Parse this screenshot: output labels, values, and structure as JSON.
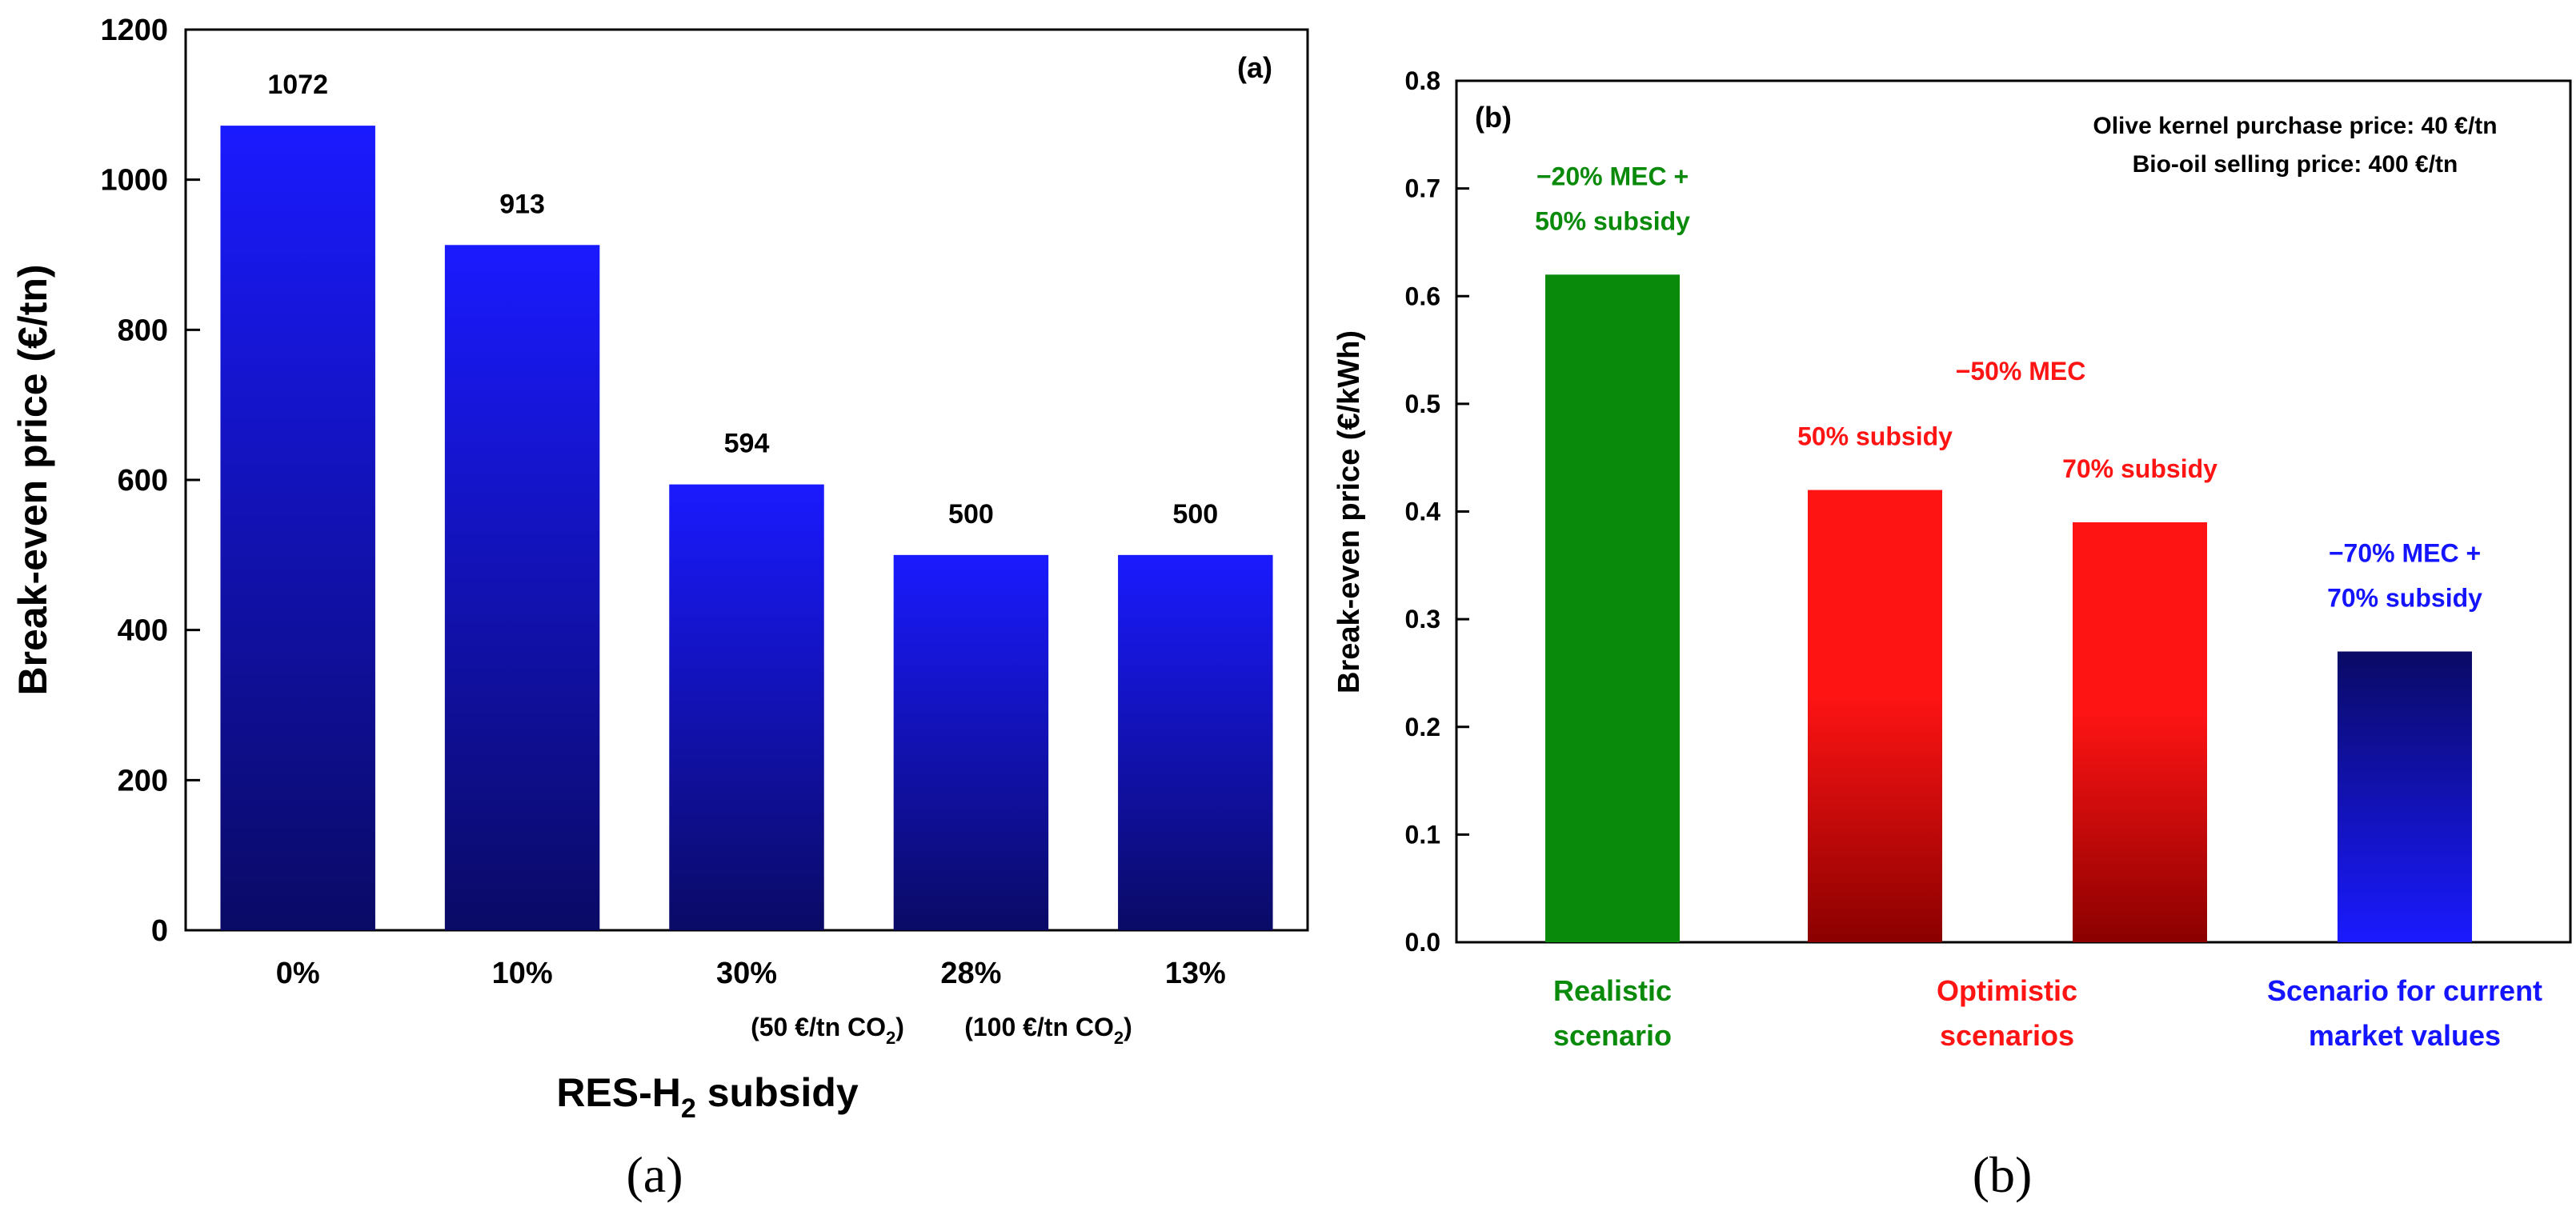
{
  "chart_data": [
    {
      "type": "bar",
      "panel_tag": "(a)",
      "caption": "(a)",
      "ylabel": "Break-even price (€/tn)",
      "xlabel": {
        "prefix": "RES-H",
        "subscript": "2",
        "suffix": " subsidy"
      },
      "ylim": [
        0,
        1200
      ],
      "yticks": [
        0,
        200,
        400,
        600,
        800,
        1000,
        1200
      ],
      "categories": [
        "0%",
        "10%",
        "30%",
        "28%",
        "13%"
      ],
      "values": [
        1072,
        913,
        594,
        500,
        500
      ],
      "value_labels": [
        "1072",
        "913",
        "594",
        "500",
        "500"
      ],
      "subcategory_notes": [
        {
          "category": "28%",
          "prefix": "(50 €/tn CO",
          "subscript": "2",
          "suffix": ")"
        },
        {
          "category": "13%",
          "prefix": "(100 €/tn CO",
          "subscript": "2",
          "suffix": ")"
        }
      ],
      "bar_gradient": {
        "top": "#1a1aff",
        "bottom": "#0a0a66"
      }
    },
    {
      "type": "bar",
      "panel_tag": "(b)",
      "caption": "(b)",
      "ylabel": "Break-even price (€/kWh)",
      "ylim": [
        0,
        0.8
      ],
      "yticks": [
        "0.0",
        "0.1",
        "0.2",
        "0.3",
        "0.4",
        "0.5",
        "0.6",
        "0.7",
        "0.8"
      ],
      "info_lines": [
        "Olive kernel purchase price: 40 €/tn",
        "Bio-oil selling price: 400 €/tn"
      ],
      "bars": [
        {
          "value": 0.62,
          "label_lines": [
            "−20% MEC +",
            "50% subsidy"
          ],
          "color": "#0a8a0a",
          "gradient": [
            "#0a8a0a",
            "#0a8a0a"
          ]
        },
        {
          "value": 0.42,
          "label_lines": [
            "50% subsidy"
          ],
          "color": "#ff1414",
          "gradient": [
            "#ff1414",
            "#8b0000"
          ]
        },
        {
          "value": 0.39,
          "label_lines": [
            "70% subsidy"
          ],
          "color": "#ff1414",
          "gradient": [
            "#ff1414",
            "#8b0000"
          ]
        },
        {
          "value": 0.27,
          "label_lines": [
            "−70% MEC +",
            "70% subsidy"
          ],
          "color": "#1414ff",
          "gradient": [
            "#0a0a66",
            "#1a1aff"
          ]
        }
      ],
      "group_label": {
        "text": "−50% MEC",
        "color": "#ff1414"
      },
      "group_captions": [
        {
          "lines": [
            "Realistic",
            "scenario"
          ],
          "color": "#0a8a0a"
        },
        {
          "lines": [
            "Optimistic",
            "scenarios"
          ],
          "color": "#ff1414"
        },
        {
          "lines": [
            "Scenario for current",
            "market values"
          ],
          "color": "#1414ff"
        }
      ]
    }
  ]
}
